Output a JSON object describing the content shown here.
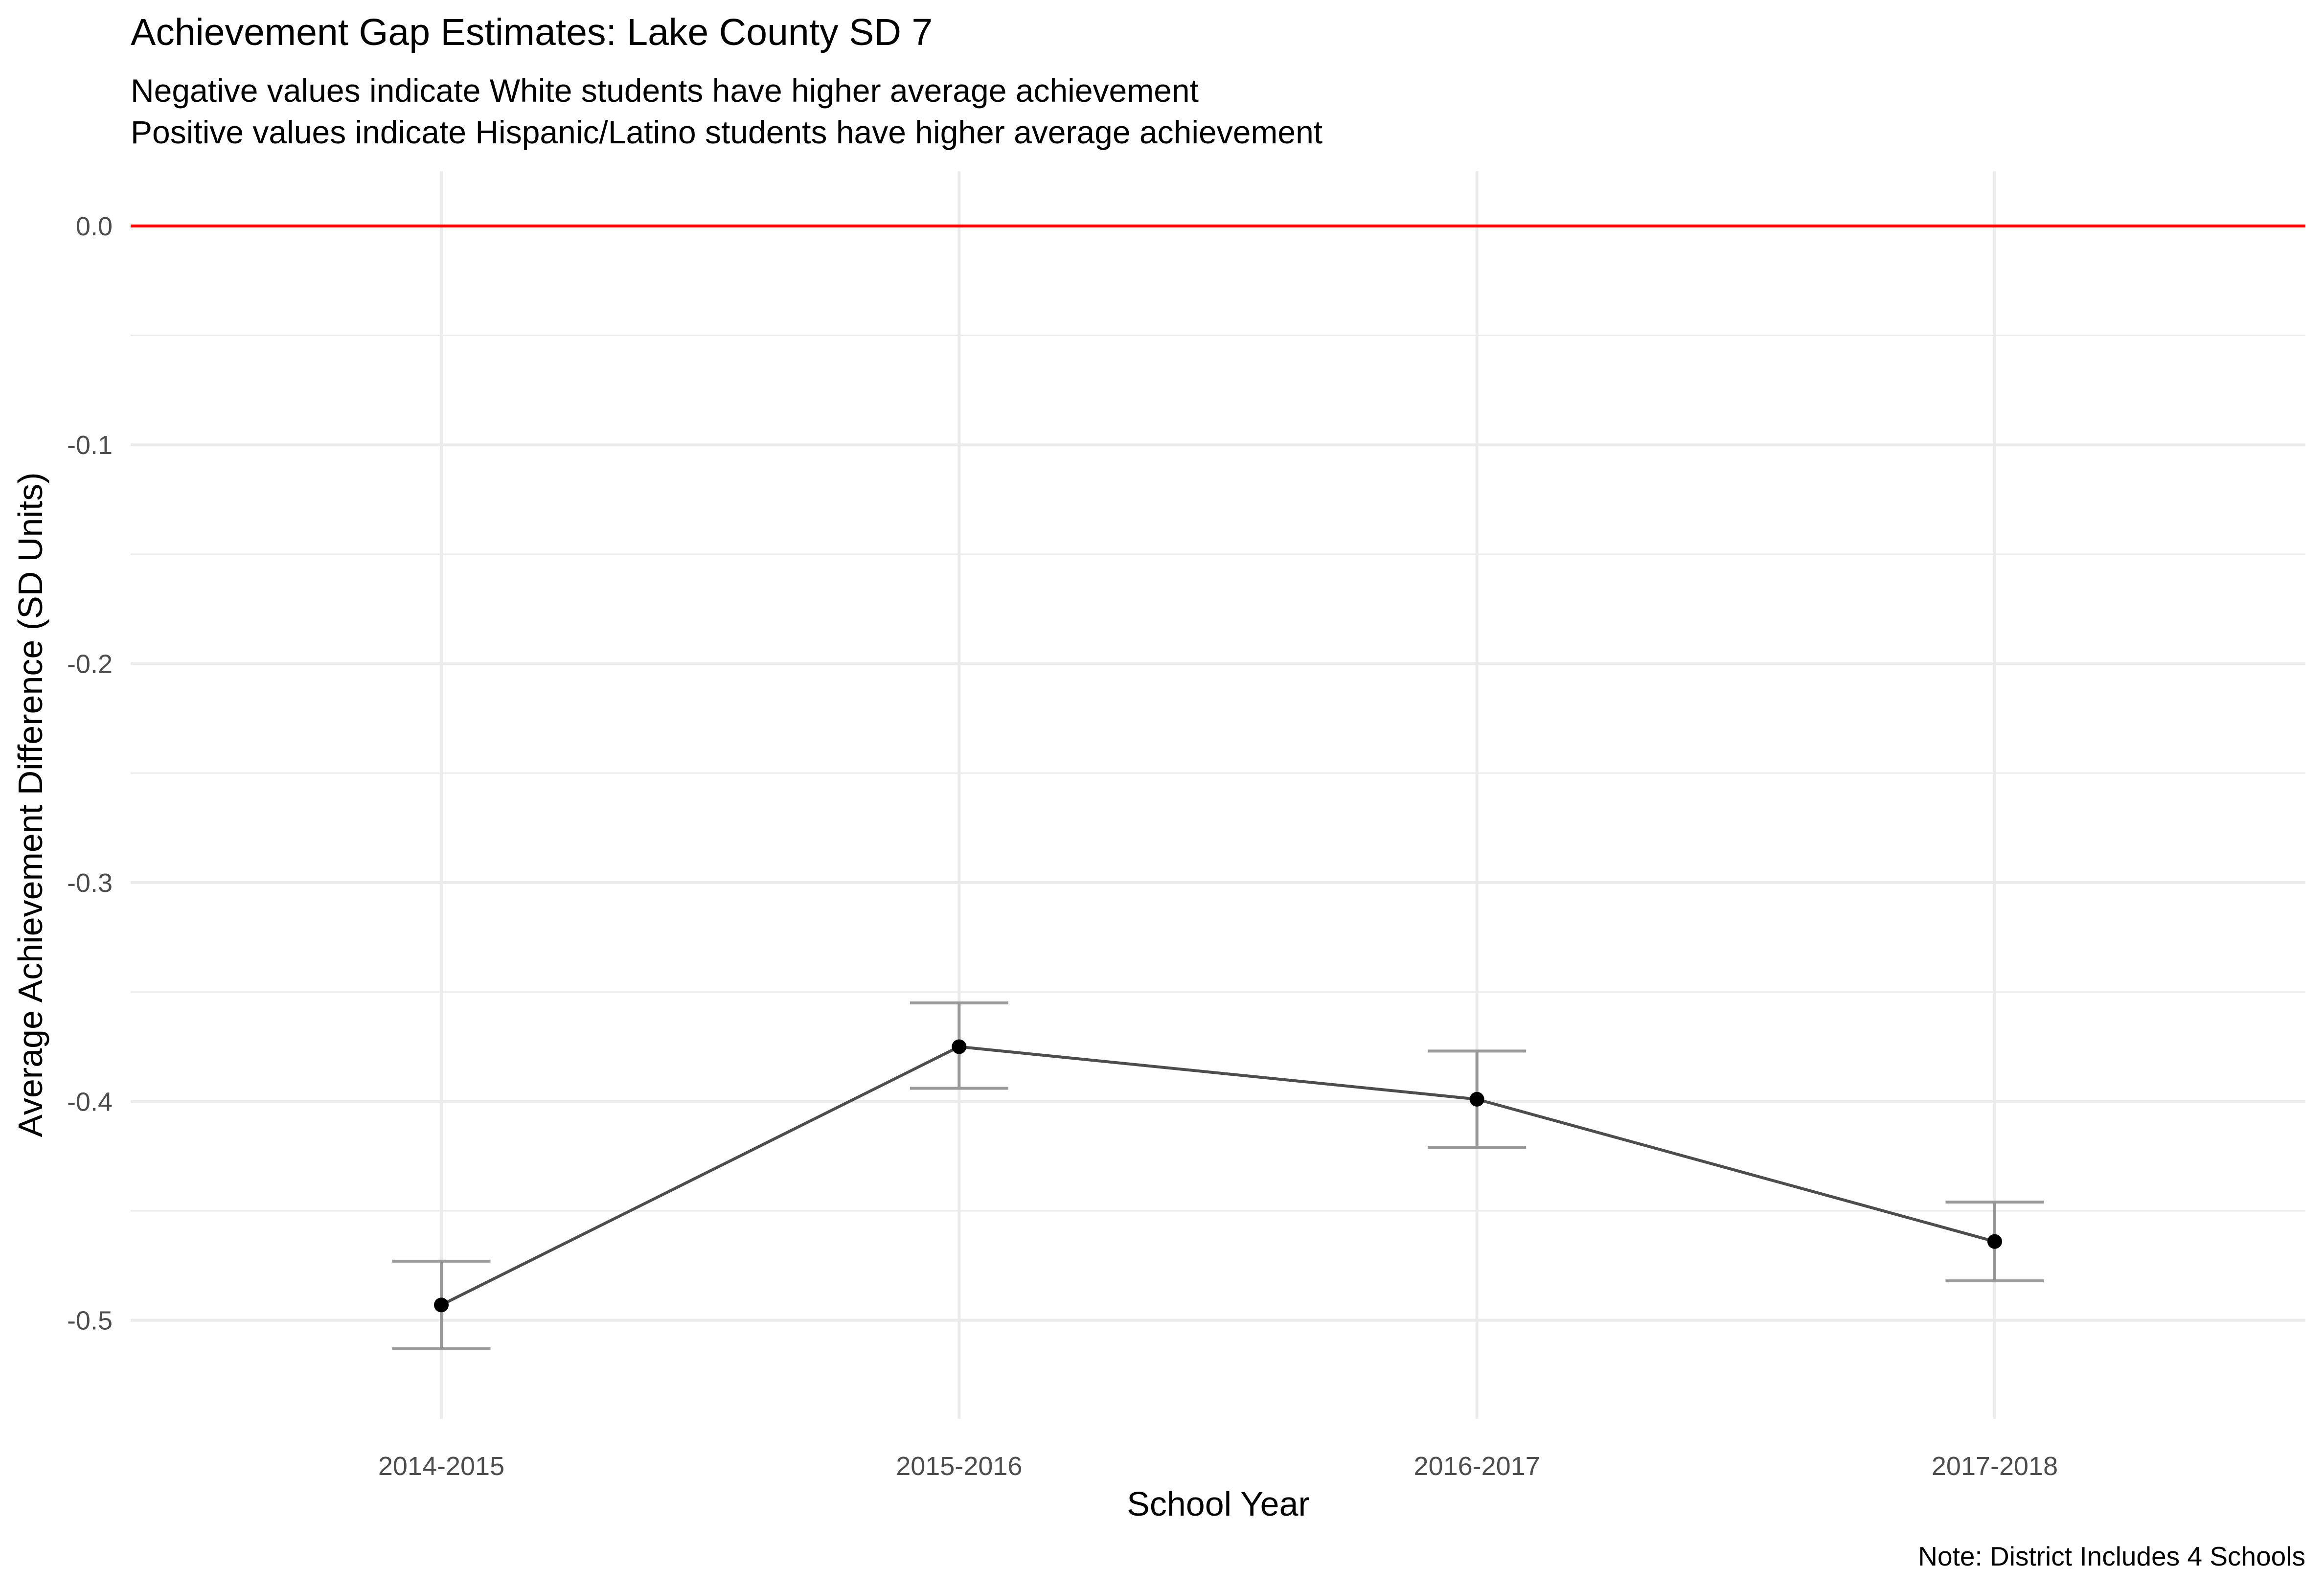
{
  "chart_data": {
    "type": "line",
    "title": "Achievement Gap Estimates: Lake County SD 7",
    "subtitle": [
      "Negative values indicate White students have higher average achievement",
      "Positive values indicate Hispanic/Latino students have higher average achievement"
    ],
    "xlabel": "School Year",
    "ylabel": "Average Achievement Difference (SD Units)",
    "caption": "Note: District Includes 4 Schools",
    "categories": [
      "2014-2015",
      "2015-2016",
      "2016-2017",
      "2017-2018"
    ],
    "values": [
      -0.493,
      -0.375,
      -0.399,
      -0.464
    ],
    "error_bars": {
      "upper": [
        -0.473,
        -0.355,
        -0.377,
        -0.446
      ],
      "lower": [
        -0.513,
        -0.394,
        -0.421,
        -0.482
      ]
    },
    "reference_line": {
      "y": 0.0,
      "color": "#ff0000"
    },
    "ylim": [
      -0.545,
      0.025
    ],
    "y_ticks": [
      0.0,
      -0.1,
      -0.2,
      -0.3,
      -0.4,
      -0.5
    ],
    "y_tick_labels": [
      "0.0",
      "-0.1",
      "-0.2",
      "-0.3",
      "-0.4",
      "-0.5"
    ],
    "grid": true,
    "colors": {
      "line": "#4d4d4d",
      "point": "#000000",
      "errorbar": "#999999",
      "grid": "#ebebeb",
      "reference": "#ff0000"
    }
  }
}
